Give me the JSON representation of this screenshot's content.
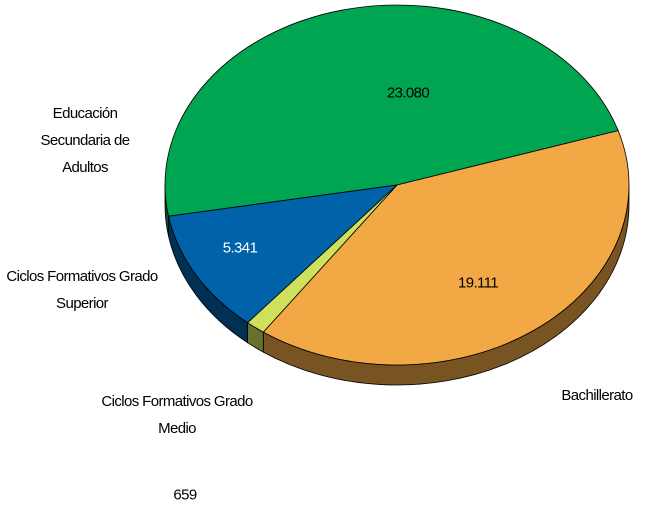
{
  "chart_data": {
    "type": "pie",
    "categories": [
      "Educación Secundaria de Adultos",
      "Bachillerato",
      "Ciclos Formativos Grado Medio",
      "Ciclos Formativos Grado Superior"
    ],
    "values": [
      23080,
      19111,
      659,
      5341
    ],
    "value_labels": [
      "23.080",
      "19.111",
      "659",
      "5.341"
    ],
    "colors": [
      "#00a551",
      "#f2a845",
      "#cfe05c",
      "#0062a9"
    ]
  }
}
